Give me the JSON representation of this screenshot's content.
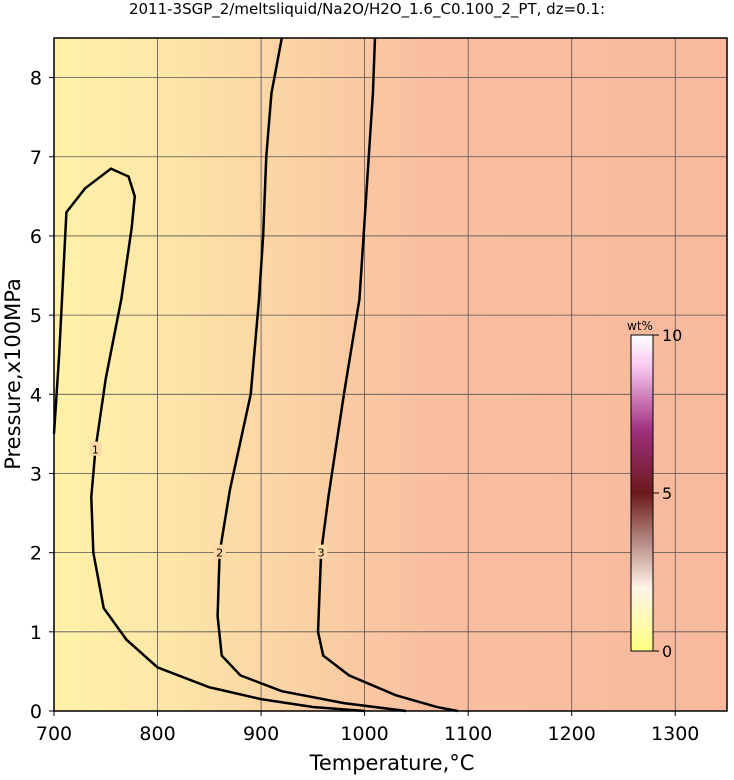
{
  "chart_data": {
    "type": "contour",
    "title": "2011-3SGP_2/meltsliquid/Na2O/H2O_1.6_C0.100_2_PT, dz=0.1:",
    "x_label": "Temperature,°C",
    "y_label": "Pressure,x100MPa",
    "xlim": [
      700,
      1350
    ],
    "xticks": [
      700,
      800,
      900,
      1000,
      1100,
      1200,
      1300
    ],
    "ylim": [
      0,
      8.5
    ],
    "yticks": [
      0,
      1,
      2,
      3,
      4,
      5,
      6,
      7,
      8
    ],
    "grid": true,
    "contours": [
      {
        "level": 1,
        "x": [
          700,
          705,
          712,
          730,
          755,
          772,
          778,
          775,
          765,
          750,
          740,
          736,
          738,
          748,
          770,
          800,
          850,
          900,
          950,
          1000
        ],
        "y": [
          3.5,
          4.5,
          6.3,
          6.6,
          6.85,
          6.75,
          6.5,
          6.1,
          5.2,
          4.2,
          3.3,
          2.7,
          2.0,
          1.3,
          0.9,
          0.55,
          0.3,
          0.15,
          0.05,
          0
        ]
      },
      {
        "level": 2,
        "x": [
          920,
          910,
          905,
          902,
          898,
          890,
          870,
          860,
          858,
          862,
          880,
          920,
          980,
          1040
        ],
        "y": [
          8.5,
          7.8,
          7,
          6,
          5.2,
          4,
          2.8,
          2,
          1.2,
          0.7,
          0.45,
          0.25,
          0.1,
          0
        ]
      },
      {
        "level": 3,
        "x": [
          1010,
          1008,
          1005,
          1000,
          995,
          980,
          965,
          958,
          955,
          960,
          985,
          1030,
          1070,
          1090
        ],
        "y": [
          8.5,
          7.8,
          7.2,
          6.2,
          5.2,
          4,
          2.7,
          2,
          1,
          0.7,
          0.45,
          0.2,
          0.05,
          0
        ]
      }
    ],
    "colorbar": {
      "label": "wt%",
      "lim": [
        0,
        10
      ],
      "ticks": [
        0,
        5,
        10
      ]
    }
  }
}
